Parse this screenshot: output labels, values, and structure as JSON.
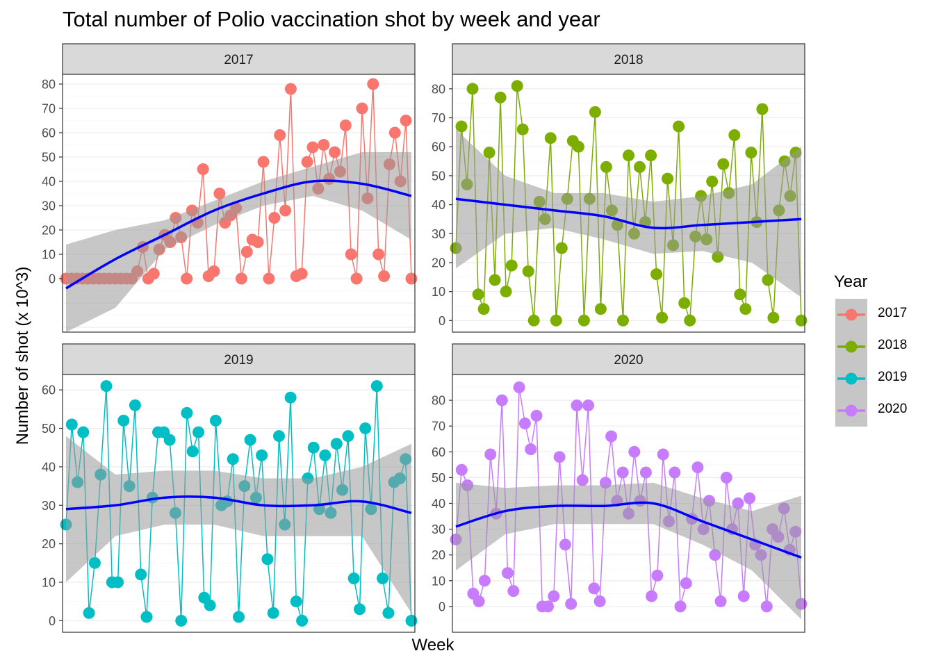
{
  "title": "Total number of Polio vaccination shot by week and year",
  "xlabel": "Week",
  "ylabel": "Number of shot (x 10^3)",
  "legend": {
    "title": "Year",
    "items": [
      {
        "label": "2017",
        "color": "#F8766D"
      },
      {
        "label": "2018",
        "color": "#7CAE00"
      },
      {
        "label": "2019",
        "color": "#00BFC4"
      },
      {
        "label": "2020",
        "color": "#C77CFF"
      }
    ]
  },
  "smooth_color": "#0000FF",
  "chart_data": [
    {
      "type": "line",
      "facet": "2017",
      "color": "#F8766D",
      "ylim": [
        -22,
        84
      ],
      "yticks": [
        0,
        10,
        20,
        30,
        40,
        50,
        60,
        70,
        80
      ],
      "values": [
        0,
        0,
        0,
        0,
        0,
        0,
        0,
        0,
        0,
        0,
        0,
        0,
        0,
        3,
        13,
        0,
        2,
        12,
        18,
        15,
        25,
        17,
        0,
        28,
        23,
        45,
        1,
        3,
        35,
        23,
        26,
        29,
        0,
        11,
        16,
        15,
        48,
        0,
        25,
        59,
        28,
        78,
        1,
        2,
        48,
        54,
        37,
        55,
        41,
        52,
        44,
        63,
        10,
        0,
        70,
        33,
        80,
        10,
        1,
        47,
        60,
        40,
        65,
        0
      ],
      "smooth": [
        -4,
        8,
        18,
        28,
        35,
        40,
        39,
        34
      ],
      "band_lo": [
        -22,
        -12,
        12,
        22,
        30,
        34,
        28,
        16
      ],
      "band_hi": [
        14,
        20,
        24,
        32,
        40,
        46,
        52,
        52
      ]
    },
    {
      "type": "line",
      "facet": "2018",
      "color": "#7CAE00",
      "ylim": [
        -4,
        85
      ],
      "yticks": [
        0,
        10,
        20,
        30,
        40,
        50,
        60,
        70,
        80
      ],
      "values": [
        25,
        67,
        47,
        80,
        9,
        4,
        58,
        14,
        77,
        10,
        19,
        81,
        66,
        17,
        0,
        41,
        35,
        63,
        0,
        25,
        42,
        62,
        60,
        0,
        42,
        72,
        4,
        53,
        38,
        33,
        0,
        57,
        30,
        53,
        34,
        57,
        16,
        1,
        49,
        26,
        67,
        6,
        0,
        29,
        43,
        28,
        48,
        22,
        54,
        44,
        64,
        9,
        4,
        58,
        34,
        73,
        14,
        1,
        38,
        55,
        43,
        58,
        0
      ],
      "smooth": [
        42,
        40,
        38,
        36,
        32,
        33,
        34,
        35
      ],
      "band_lo": [
        18,
        30,
        32,
        28,
        23,
        24,
        20,
        8
      ],
      "band_hi": [
        66,
        50,
        44,
        44,
        41,
        43,
        47,
        60
      ]
    },
    {
      "type": "line",
      "facet": "2019",
      "color": "#00BFC4",
      "ylim": [
        -3,
        64
      ],
      "yticks": [
        0,
        10,
        20,
        30,
        40,
        50,
        60
      ],
      "values": [
        25,
        51,
        36,
        49,
        2,
        15,
        38,
        61,
        10,
        10,
        52,
        35,
        56,
        12,
        1,
        32,
        49,
        49,
        47,
        28,
        0,
        54,
        44,
        49,
        6,
        4,
        52,
        30,
        31,
        42,
        1,
        35,
        47,
        32,
        43,
        16,
        2,
        48,
        25,
        58,
        5,
        0,
        37,
        45,
        29,
        43,
        28,
        46,
        34,
        48,
        11,
        3,
        50,
        29,
        61,
        11,
        2,
        36,
        37,
        42,
        0
      ],
      "smooth": [
        29,
        30,
        32,
        32,
        30,
        30,
        31,
        28
      ],
      "band_lo": [
        10,
        22,
        25,
        25,
        22,
        22,
        22,
        2
      ],
      "band_hi": [
        48,
        38,
        39,
        39,
        37,
        37,
        40,
        46
      ]
    },
    {
      "type": "line",
      "facet": "2020",
      "color": "#C77CFF",
      "ylim": [
        -10,
        90
      ],
      "yticks": [
        0,
        10,
        20,
        30,
        40,
        50,
        60,
        70,
        80
      ],
      "values": [
        26,
        53,
        47,
        5,
        2,
        10,
        59,
        36,
        80,
        13,
        6,
        85,
        71,
        61,
        74,
        0,
        0,
        4,
        58,
        24,
        1,
        78,
        49,
        78,
        7,
        2,
        48,
        66,
        41,
        52,
        36,
        60,
        41,
        52,
        4,
        12,
        59,
        33,
        52,
        0,
        9,
        34,
        54,
        30,
        41,
        20,
        2,
        50,
        30,
        40,
        4,
        42,
        24,
        20,
        0,
        30,
        27,
        38,
        22,
        29,
        1
      ],
      "smooth": [
        31,
        37,
        39,
        39,
        40,
        33,
        26,
        19
      ],
      "band_lo": [
        14,
        28,
        32,
        32,
        32,
        24,
        14,
        -5
      ],
      "band_hi": [
        48,
        46,
        47,
        47,
        48,
        42,
        37,
        43
      ]
    }
  ]
}
